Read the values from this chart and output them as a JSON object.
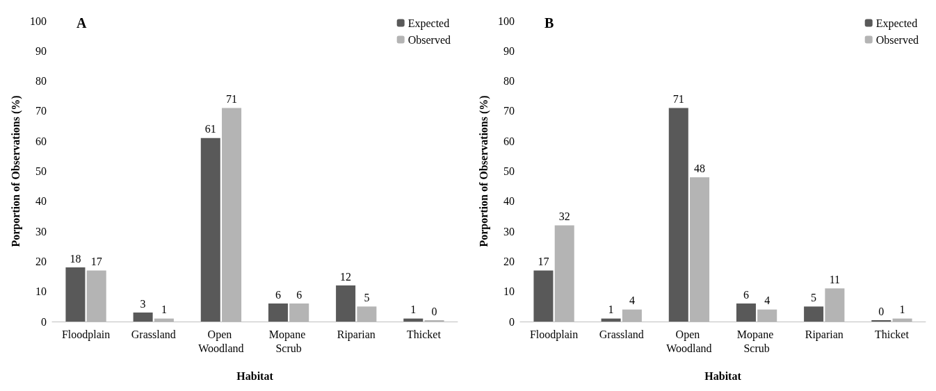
{
  "chart_data": [
    {
      "type": "bar",
      "title": "A",
      "xlabel": "Habitat",
      "ylabel": "Porportion of Observations (%)",
      "categories": [
        "Floodplain",
        "Grassland",
        "Open Woodland",
        "Mopane Scrub",
        "Riparian",
        "Thicket"
      ],
      "series": [
        {
          "name": "Expected",
          "color": "#595959",
          "values": [
            18,
            3,
            61,
            6,
            12,
            1
          ]
        },
        {
          "name": "Observed",
          "color": "#b4b4b4",
          "values": [
            17,
            1,
            71,
            6,
            5,
            0
          ]
        }
      ],
      "ylim": [
        0,
        100
      ],
      "yticks": [
        0,
        10,
        20,
        30,
        40,
        50,
        60,
        70,
        80,
        90,
        100
      ],
      "grid": false,
      "legend": "top right",
      "data_labels": true
    },
    {
      "type": "bar",
      "title": "B",
      "xlabel": "Habitat",
      "ylabel": "Porportion of Observations (%)",
      "categories": [
        "Floodplain",
        "Grassland",
        "Open Woodland",
        "Mopane Scrub",
        "Riparian",
        "Thicket"
      ],
      "series": [
        {
          "name": "Expected",
          "color": "#595959",
          "values": [
            17,
            1,
            71,
            6,
            5,
            0
          ]
        },
        {
          "name": "Observed",
          "color": "#b4b4b4",
          "values": [
            32,
            4,
            48,
            4,
            11,
            1
          ]
        }
      ],
      "ylim": [
        0,
        100
      ],
      "yticks": [
        0,
        10,
        20,
        30,
        40,
        50,
        60,
        70,
        80,
        90,
        100
      ],
      "grid": false,
      "legend": "top right",
      "data_labels": true
    }
  ]
}
